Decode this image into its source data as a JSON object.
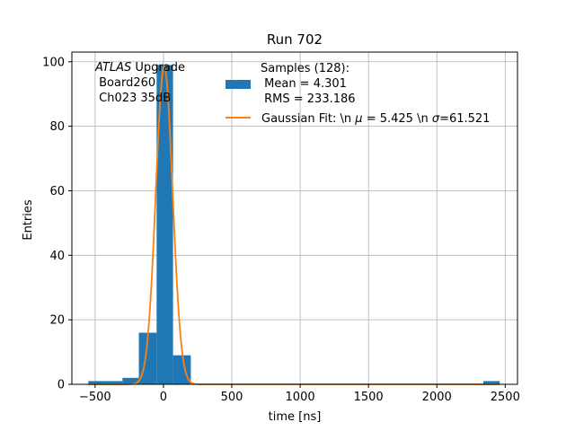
{
  "chart_data": {
    "type": "bar",
    "title": "Run 702",
    "xlabel": "time [ns]",
    "ylabel": "Entries",
    "xlim": [
      -670,
      2590
    ],
    "ylim": [
      0,
      103
    ],
    "x_ticks": [
      -500,
      0,
      500,
      1000,
      1500,
      2000,
      2500
    ],
    "y_ticks": [
      0,
      20,
      40,
      60,
      80,
      100
    ],
    "grid": true,
    "legend_position": "top-right",
    "annotation": {
      "line1_italic": "ATLAS",
      "line1_rest": " Upgrade",
      "line2": " Board260",
      "line3": " Ch023 35dB"
    },
    "bar_color": "#1f77b4",
    "fit_color": "#ff7f0e",
    "histogram": {
      "name_lines": [
        "Samples (128):",
        " Mean = 4.301",
        " RMS = 233.186"
      ],
      "bins": [
        {
          "x0": -550,
          "x1": -300,
          "count": 1
        },
        {
          "x0": -300,
          "x1": -180,
          "count": 2
        },
        {
          "x0": -180,
          "x1": -50,
          "count": 16
        },
        {
          "x0": -50,
          "x1": 70,
          "count": 99
        },
        {
          "x0": 70,
          "x1": 200,
          "count": 9
        },
        {
          "x0": 2340,
          "x1": 2460,
          "count": 1
        }
      ]
    },
    "fit": {
      "label_prefix": "Gaussian Fit: \\n ",
      "label_mu": "μ",
      "label_mid": " = 5.425 \\n ",
      "label_sigma": "σ",
      "label_end": "=61.521",
      "mu": 5.425,
      "sigma": 61.521,
      "amplitude": 98.5,
      "x_range": [
        -550,
        2460
      ]
    }
  }
}
